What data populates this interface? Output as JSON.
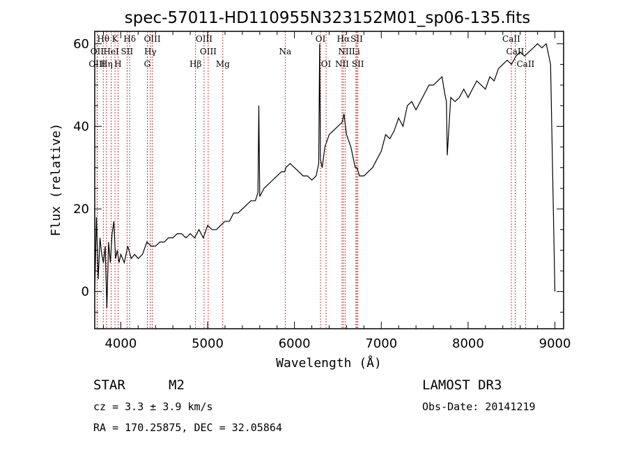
{
  "chart_data": {
    "type": "line",
    "title": "spec-57011-HD110955N323152M01_sp06-135.fits",
    "xlabel": "Wavelength (Å)",
    "ylabel": "Flux (relative)",
    "xlim": [
      3700,
      9100
    ],
    "ylim": [
      -9,
      63
    ],
    "x_ticks": [
      4000,
      5000,
      6000,
      7000,
      8000,
      9000
    ],
    "y_ticks": [
      0,
      20,
      40,
      60
    ],
    "grid": false,
    "series": [
      {
        "name": "spectrum",
        "x": [
          3700,
          3720,
          3740,
          3760,
          3780,
          3800,
          3820,
          3840,
          3860,
          3880,
          3900,
          3920,
          3940,
          3960,
          3980,
          4000,
          4040,
          4080,
          4120,
          4160,
          4200,
          4250,
          4300,
          4350,
          4400,
          4450,
          4500,
          4550,
          4600,
          4650,
          4700,
          4750,
          4800,
          4850,
          4900,
          4950,
          5000,
          5050,
          5100,
          5150,
          5200,
          5250,
          5300,
          5350,
          5400,
          5450,
          5500,
          5550,
          5580,
          5590,
          5600,
          5650,
          5700,
          5750,
          5800,
          5850,
          5890,
          5900,
          5950,
          6000,
          6050,
          6100,
          6150,
          6200,
          6250,
          6280,
          6290,
          6300,
          6320,
          6350,
          6400,
          6450,
          6500,
          6550,
          6570,
          6600,
          6650,
          6700,
          6720,
          6750,
          6800,
          6850,
          6900,
          6950,
          7000,
          7050,
          7100,
          7150,
          7200,
          7250,
          7300,
          7350,
          7400,
          7450,
          7500,
          7550,
          7600,
          7650,
          7700,
          7730,
          7750,
          7760,
          7800,
          7850,
          7900,
          7950,
          8000,
          8050,
          8100,
          8150,
          8200,
          8250,
          8300,
          8350,
          8400,
          8450,
          8500,
          8550,
          8600,
          8650,
          8700,
          8750,
          8800,
          8850,
          8900,
          8950,
          9000
        ],
        "values": [
          0,
          18,
          3,
          13,
          9,
          7,
          11,
          -4,
          12,
          7,
          14,
          17,
          8,
          10,
          7,
          9,
          7,
          11,
          8,
          9,
          8,
          9,
          12,
          11,
          11,
          12,
          12,
          13,
          13,
          14,
          14,
          13,
          14,
          13,
          15,
          13,
          16,
          15,
          15,
          16,
          17,
          17,
          19,
          19,
          20,
          21,
          22,
          22,
          24,
          45,
          23,
          25,
          26,
          27,
          28,
          29,
          29,
          30,
          31,
          30,
          29,
          28,
          28,
          27,
          28,
          31,
          60,
          32,
          30,
          35,
          38,
          39,
          40,
          41,
          43,
          38,
          35,
          30,
          30,
          28,
          28,
          29,
          30,
          32,
          34,
          38,
          37,
          39,
          42,
          40,
          45,
          46,
          44,
          46,
          48,
          50,
          50,
          51,
          52,
          48,
          46,
          33,
          47,
          46,
          47,
          49,
          47,
          49,
          51,
          50,
          49,
          52,
          51,
          54,
          55,
          56,
          55,
          57,
          58,
          57,
          58,
          59,
          60,
          59,
          60,
          55,
          0
        ]
      }
    ],
    "spectral_lines": [
      {
        "label": "Hθ",
        "x": 3798,
        "row": 1
      },
      {
        "label": "K",
        "x": 3933,
        "row": 1
      },
      {
        "label": "Hδ",
        "x": 4102,
        "row": 1
      },
      {
        "label": "OIII",
        "x": 4363,
        "row": 1
      },
      {
        "label": "OIII",
        "x": 4959,
        "row": 1
      },
      {
        "label": "OI",
        "x": 6300,
        "row": 1
      },
      {
        "label": "Hα",
        "x": 6563,
        "row": 1
      },
      {
        "label": "SII",
        "x": 6717,
        "row": 1
      },
      {
        "label": "CaII",
        "x": 8498,
        "row": 1
      },
      {
        "label": "OII",
        "x": 3727,
        "row": 2
      },
      {
        "label": "HeI",
        "x": 3889,
        "row": 2
      },
      {
        "label": "SII",
        "x": 4072,
        "row": 2
      },
      {
        "label": "Hγ",
        "x": 4340,
        "row": 2
      },
      {
        "label": "OIII",
        "x": 5007,
        "row": 2
      },
      {
        "label": "Na",
        "x": 5893,
        "row": 2
      },
      {
        "label": "NII",
        "x": 6583,
        "row": 2
      },
      {
        "label": "Li",
        "x": 6708,
        "row": 2
      },
      {
        "label": "CaII",
        "x": 8542,
        "row": 2
      },
      {
        "label": "OIII",
        "x": 3727,
        "row": 3
      },
      {
        "label": "Hη",
        "x": 3835,
        "row": 3
      },
      {
        "label": "H",
        "x": 3968,
        "row": 3
      },
      {
        "label": "G",
        "x": 4305,
        "row": 3
      },
      {
        "label": "Hβ",
        "x": 4861,
        "row": 3
      },
      {
        "label": "Mg",
        "x": 5175,
        "row": 3
      },
      {
        "label": "OI",
        "x": 6364,
        "row": 3
      },
      {
        "label": "NII",
        "x": 6548,
        "row": 3
      },
      {
        "label": "SII",
        "x": 6731,
        "row": 3
      },
      {
        "label": "CaII",
        "x": 8662,
        "row": 3
      }
    ]
  },
  "info": {
    "object_class": "STAR",
    "subclass": "M2",
    "survey": "LAMOST DR3",
    "redshift": "cz = 3.3 ± 3.9 km/s",
    "obs_date": "Obs-Date: 20141219",
    "coords": "RA = 170.25875, DEC =  32.05864"
  }
}
